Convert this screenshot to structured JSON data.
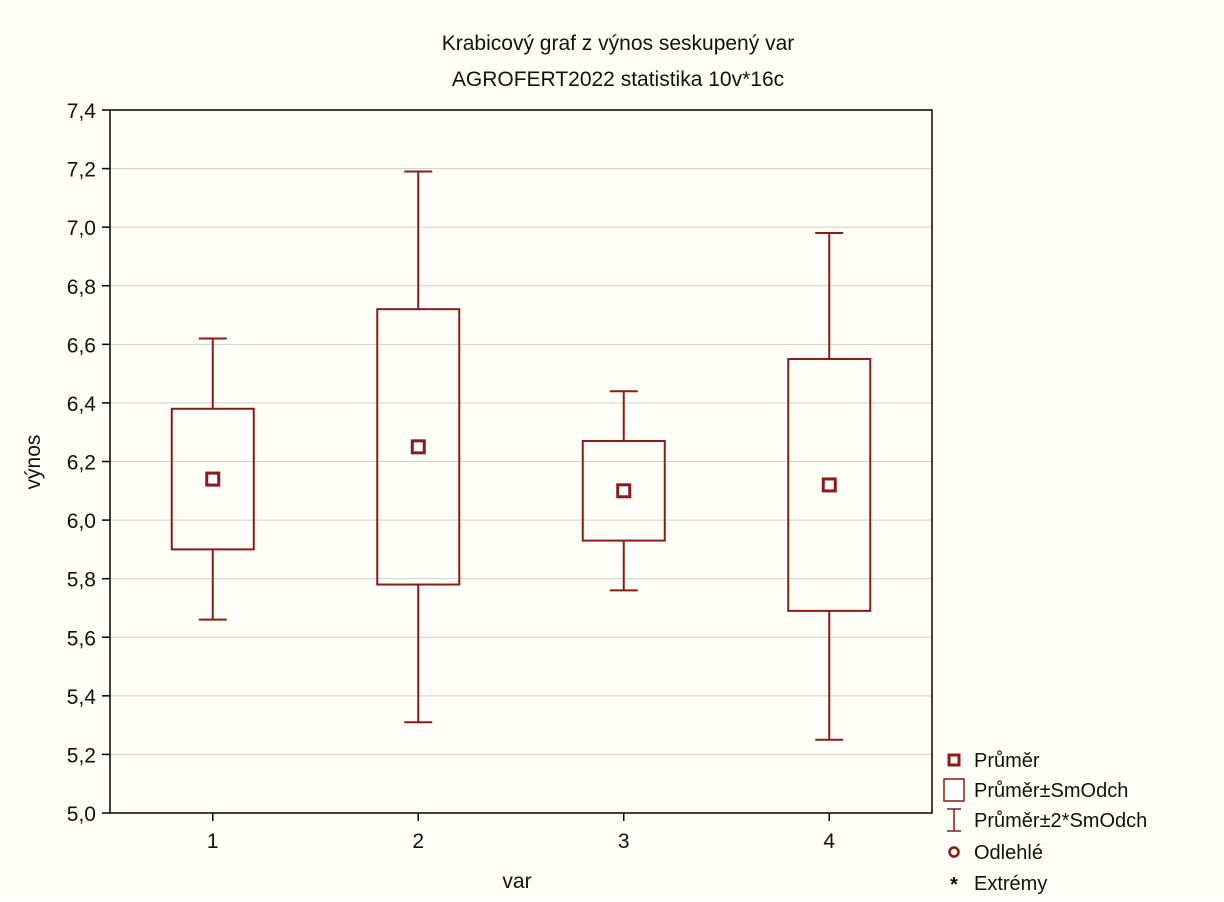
{
  "chart_data": {
    "type": "box",
    "title": "Krabicový graf z výnos seskupený var",
    "subtitle": "AGROFERT2022 statistika 10v*16c",
    "xlabel": "var",
    "ylabel": "výnos",
    "categories": [
      "1",
      "2",
      "3",
      "4"
    ],
    "ylim": [
      5.0,
      7.4
    ],
    "yticks": [
      5.0,
      5.2,
      5.4,
      5.6,
      5.8,
      6.0,
      6.2,
      6.4,
      6.6,
      6.8,
      7.0,
      7.2,
      7.4
    ],
    "ytick_labels": [
      "5,0",
      "5,2",
      "5,4",
      "5,6",
      "5,8",
      "6,0",
      "6,2",
      "6,4",
      "6,6",
      "6,8",
      "7,0",
      "7,2",
      "7,4"
    ],
    "grid": true,
    "legend_position": "bottom-right",
    "series": [
      {
        "category": "1",
        "mean": 6.14,
        "box_low": 5.9,
        "box_high": 6.38,
        "whisker_low": 5.66,
        "whisker_high": 6.62
      },
      {
        "category": "2",
        "mean": 6.25,
        "box_low": 5.78,
        "box_high": 6.72,
        "whisker_low": 5.31,
        "whisker_high": 7.19
      },
      {
        "category": "3",
        "mean": 6.1,
        "box_low": 5.93,
        "box_high": 6.27,
        "whisker_low": 5.76,
        "whisker_high": 6.44
      },
      {
        "category": "4",
        "mean": 6.12,
        "box_low": 5.69,
        "box_high": 6.55,
        "whisker_low": 5.25,
        "whisker_high": 6.98
      }
    ],
    "legend": [
      {
        "symbol": "mean-square",
        "label": "Průměr"
      },
      {
        "symbol": "box",
        "label": "Průměr±SmOdch"
      },
      {
        "symbol": "whisker",
        "label": "Průměr±2*SmOdch"
      },
      {
        "symbol": "circle",
        "label": "Odlehlé"
      },
      {
        "symbol": "asterisk",
        "label": "Extrémy"
      }
    ],
    "colors": {
      "series": "#8b1a1a",
      "grid": "#cfcfcf",
      "axis": "#000000",
      "background": "#fffff8"
    }
  }
}
